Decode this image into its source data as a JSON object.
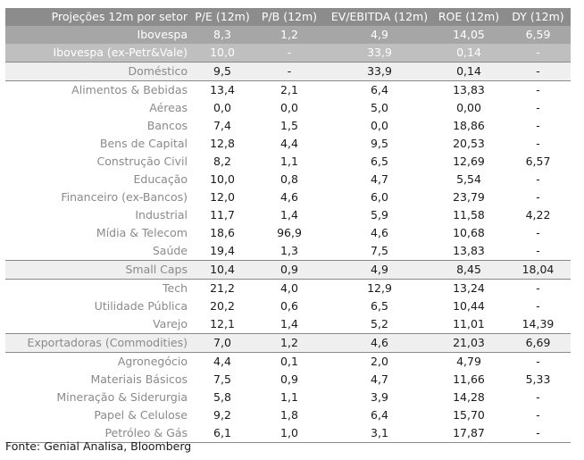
{
  "header": [
    "Projeções 12m por setor",
    "P/E (12m)",
    "P/B (12m)",
    "EV/EBITDA (12m)",
    "ROE (12m)",
    "DY (12m)"
  ],
  "rows": [
    {
      "name": "Ibovespa",
      "vals": [
        "8,3",
        "1,2",
        "4,9",
        "14,05",
        "6,59"
      ],
      "style": "ibov"
    },
    {
      "name": "Ibovespa (ex-Petr&Vale)",
      "vals": [
        "10,0",
        "-",
        "33,9",
        "0,14",
        "-"
      ],
      "style": "exp"
    },
    {
      "name": "Doméstico",
      "vals": [
        "9,5",
        "-",
        "33,9",
        "0,14",
        "-"
      ],
      "style": "group"
    },
    {
      "name": "Alimentos & Bebidas",
      "vals": [
        "13,4",
        "2,1",
        "6,4",
        "13,83",
        "-"
      ],
      "style": "normal"
    },
    {
      "name": "Aéreas",
      "vals": [
        "0,0",
        "0,0",
        "5,0",
        "0,00",
        "-"
      ],
      "style": "normal"
    },
    {
      "name": "Bancos",
      "vals": [
        "7,4",
        "1,5",
        "0,0",
        "18,86",
        "-"
      ],
      "style": "normal"
    },
    {
      "name": "Bens de Capital",
      "vals": [
        "12,8",
        "4,4",
        "9,5",
        "20,53",
        "-"
      ],
      "style": "normal"
    },
    {
      "name": "Construção Civil",
      "vals": [
        "8,2",
        "1,1",
        "6,5",
        "12,69",
        "6,57"
      ],
      "style": "normal"
    },
    {
      "name": "Educação",
      "vals": [
        "10,0",
        "0,8",
        "4,7",
        "5,54",
        "-"
      ],
      "style": "normal"
    },
    {
      "name": "Financeiro (ex-Bancos)",
      "vals": [
        "12,0",
        "4,6",
        "6,0",
        "23,79",
        "-"
      ],
      "style": "normal"
    },
    {
      "name": "Industrial",
      "vals": [
        "11,7",
        "1,4",
        "5,9",
        "11,58",
        "4,22"
      ],
      "style": "normal"
    },
    {
      "name": "Mídia & Telecom",
      "vals": [
        "18,6",
        "96,9",
        "4,6",
        "10,68",
        "-"
      ],
      "style": "normal"
    },
    {
      "name": "Saúde",
      "vals": [
        "19,4",
        "1,3",
        "7,5",
        "13,83",
        "-"
      ],
      "style": "normal"
    },
    {
      "name": "Small Caps",
      "vals": [
        "10,4",
        "0,9",
        "4,9",
        "8,45",
        "18,04"
      ],
      "style": "group"
    },
    {
      "name": "Tech",
      "vals": [
        "21,2",
        "4,0",
        "12,9",
        "13,24",
        "-"
      ],
      "style": "normal"
    },
    {
      "name": "Utilidade Pública",
      "vals": [
        "20,2",
        "0,6",
        "6,5",
        "10,44",
        "-"
      ],
      "style": "normal"
    },
    {
      "name": "Varejo",
      "vals": [
        "12,1",
        "1,4",
        "5,2",
        "11,01",
        "14,39"
      ],
      "style": "normal"
    },
    {
      "name": "Exportadoras (Commodities)",
      "vals": [
        "7,0",
        "1,2",
        "4,6",
        "21,03",
        "6,69"
      ],
      "style": "group"
    },
    {
      "name": "Agronegócio",
      "vals": [
        "4,4",
        "0,1",
        "2,0",
        "4,79",
        "-"
      ],
      "style": "normal"
    },
    {
      "name": "Materiais Básicos",
      "vals": [
        "7,5",
        "0,9",
        "4,7",
        "11,66",
        "5,33"
      ],
      "style": "normal"
    },
    {
      "name": "Mineração & Siderurgia",
      "vals": [
        "5,8",
        "1,1",
        "3,9",
        "14,28",
        "-"
      ],
      "style": "normal"
    },
    {
      "name": "Papel & Celulose",
      "vals": [
        "9,2",
        "1,8",
        "6,4",
        "15,70",
        "-"
      ],
      "style": "normal"
    },
    {
      "name": "Petróleo & Gás",
      "vals": [
        "6,1",
        "1,0",
        "3,1",
        "17,87",
        "-"
      ],
      "style": "normal"
    }
  ],
  "source": "Fonte: Genial Analisa, Bloomberg"
}
